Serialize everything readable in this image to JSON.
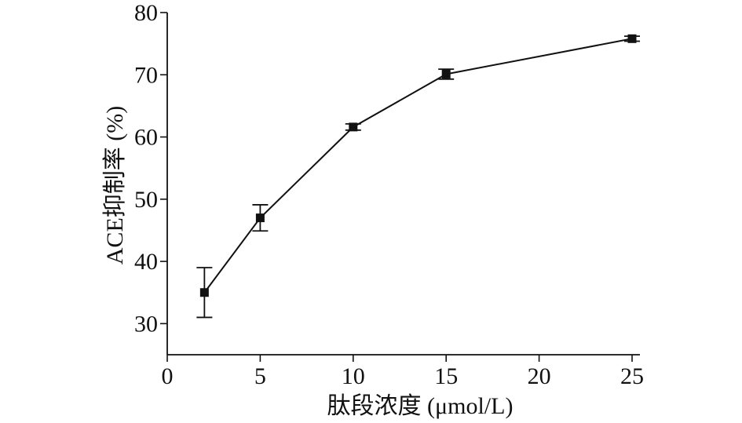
{
  "chart_data": {
    "type": "line",
    "xlabel": "肽段浓度 (μmol/L)",
    "ylabel": "ACE抑制率 (%)",
    "xlim": [
      0,
      25
    ],
    "ylim": [
      25,
      80
    ],
    "x_ticks": [
      0,
      5,
      10,
      15,
      20,
      25
    ],
    "y_ticks": [
      30,
      40,
      50,
      60,
      70,
      80
    ],
    "x_tick_labels": [
      "0",
      "5",
      "10",
      "15",
      "20",
      "25"
    ],
    "y_tick_labels": [
      "30",
      "40",
      "50",
      "60",
      "70",
      "80"
    ],
    "grid": false,
    "marker": "square",
    "color": "#111111",
    "series": [
      {
        "x": [
          2,
          5,
          10,
          15,
          25
        ],
        "y": [
          35.0,
          47.0,
          61.6,
          70.1,
          75.8
        ],
        "error": [
          4.0,
          2.1,
          0.5,
          0.8,
          0.4
        ]
      }
    ]
  }
}
